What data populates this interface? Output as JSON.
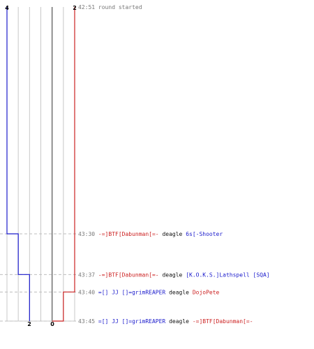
{
  "colors": {
    "blue": "#1a1acc",
    "red": "#cc2222",
    "time": "#777777",
    "weapon": "#111111",
    "grid": "#c8c8c8",
    "center": "#777777",
    "dash": "#bdbdbd"
  },
  "counts": {
    "blue_top": "4",
    "red_top": "2",
    "blue_bottom": "2",
    "red_bottom": "0"
  },
  "events": [
    {
      "time": "42:51",
      "text": "round started",
      "kind": "start"
    },
    {
      "time": "43:30",
      "killer": "-=]BTF[Dabunman[=-",
      "killer_team": "red",
      "weapon": "deagle",
      "victim": "6s[-Shooter",
      "victim_team": "blue"
    },
    {
      "time": "43:37",
      "killer": "-=]BTF[Dabunman[=-",
      "killer_team": "red",
      "weapon": "deagle",
      "victim": "[K.O.K.S.]Lathspell [SQA]",
      "victim_team": "blue"
    },
    {
      "time": "43:40",
      "killer": "=[] JJ []=grimREAPER",
      "killer_team": "blue",
      "weapon": "deagle",
      "victim": "DojoPete",
      "victim_team": "red"
    },
    {
      "time": "43:45",
      "killer": "=[] JJ []=grimREAPER",
      "killer_team": "blue",
      "weapon": "deagle",
      "victim": "-=]BTF[Dabunman[=-",
      "victim_team": "red"
    }
  ],
  "chart_data": {
    "type": "line",
    "x": [
      "42:51",
      "43:30",
      "43:37",
      "43:40",
      "43:45"
    ],
    "series": [
      {
        "values": [
          4,
          3,
          2,
          2,
          2
        ]
      },
      {
        "values": [
          2,
          2,
          2,
          1,
          0
        ]
      }
    ],
    "ylim": [
      0,
      4
    ],
    "grid": true
  }
}
